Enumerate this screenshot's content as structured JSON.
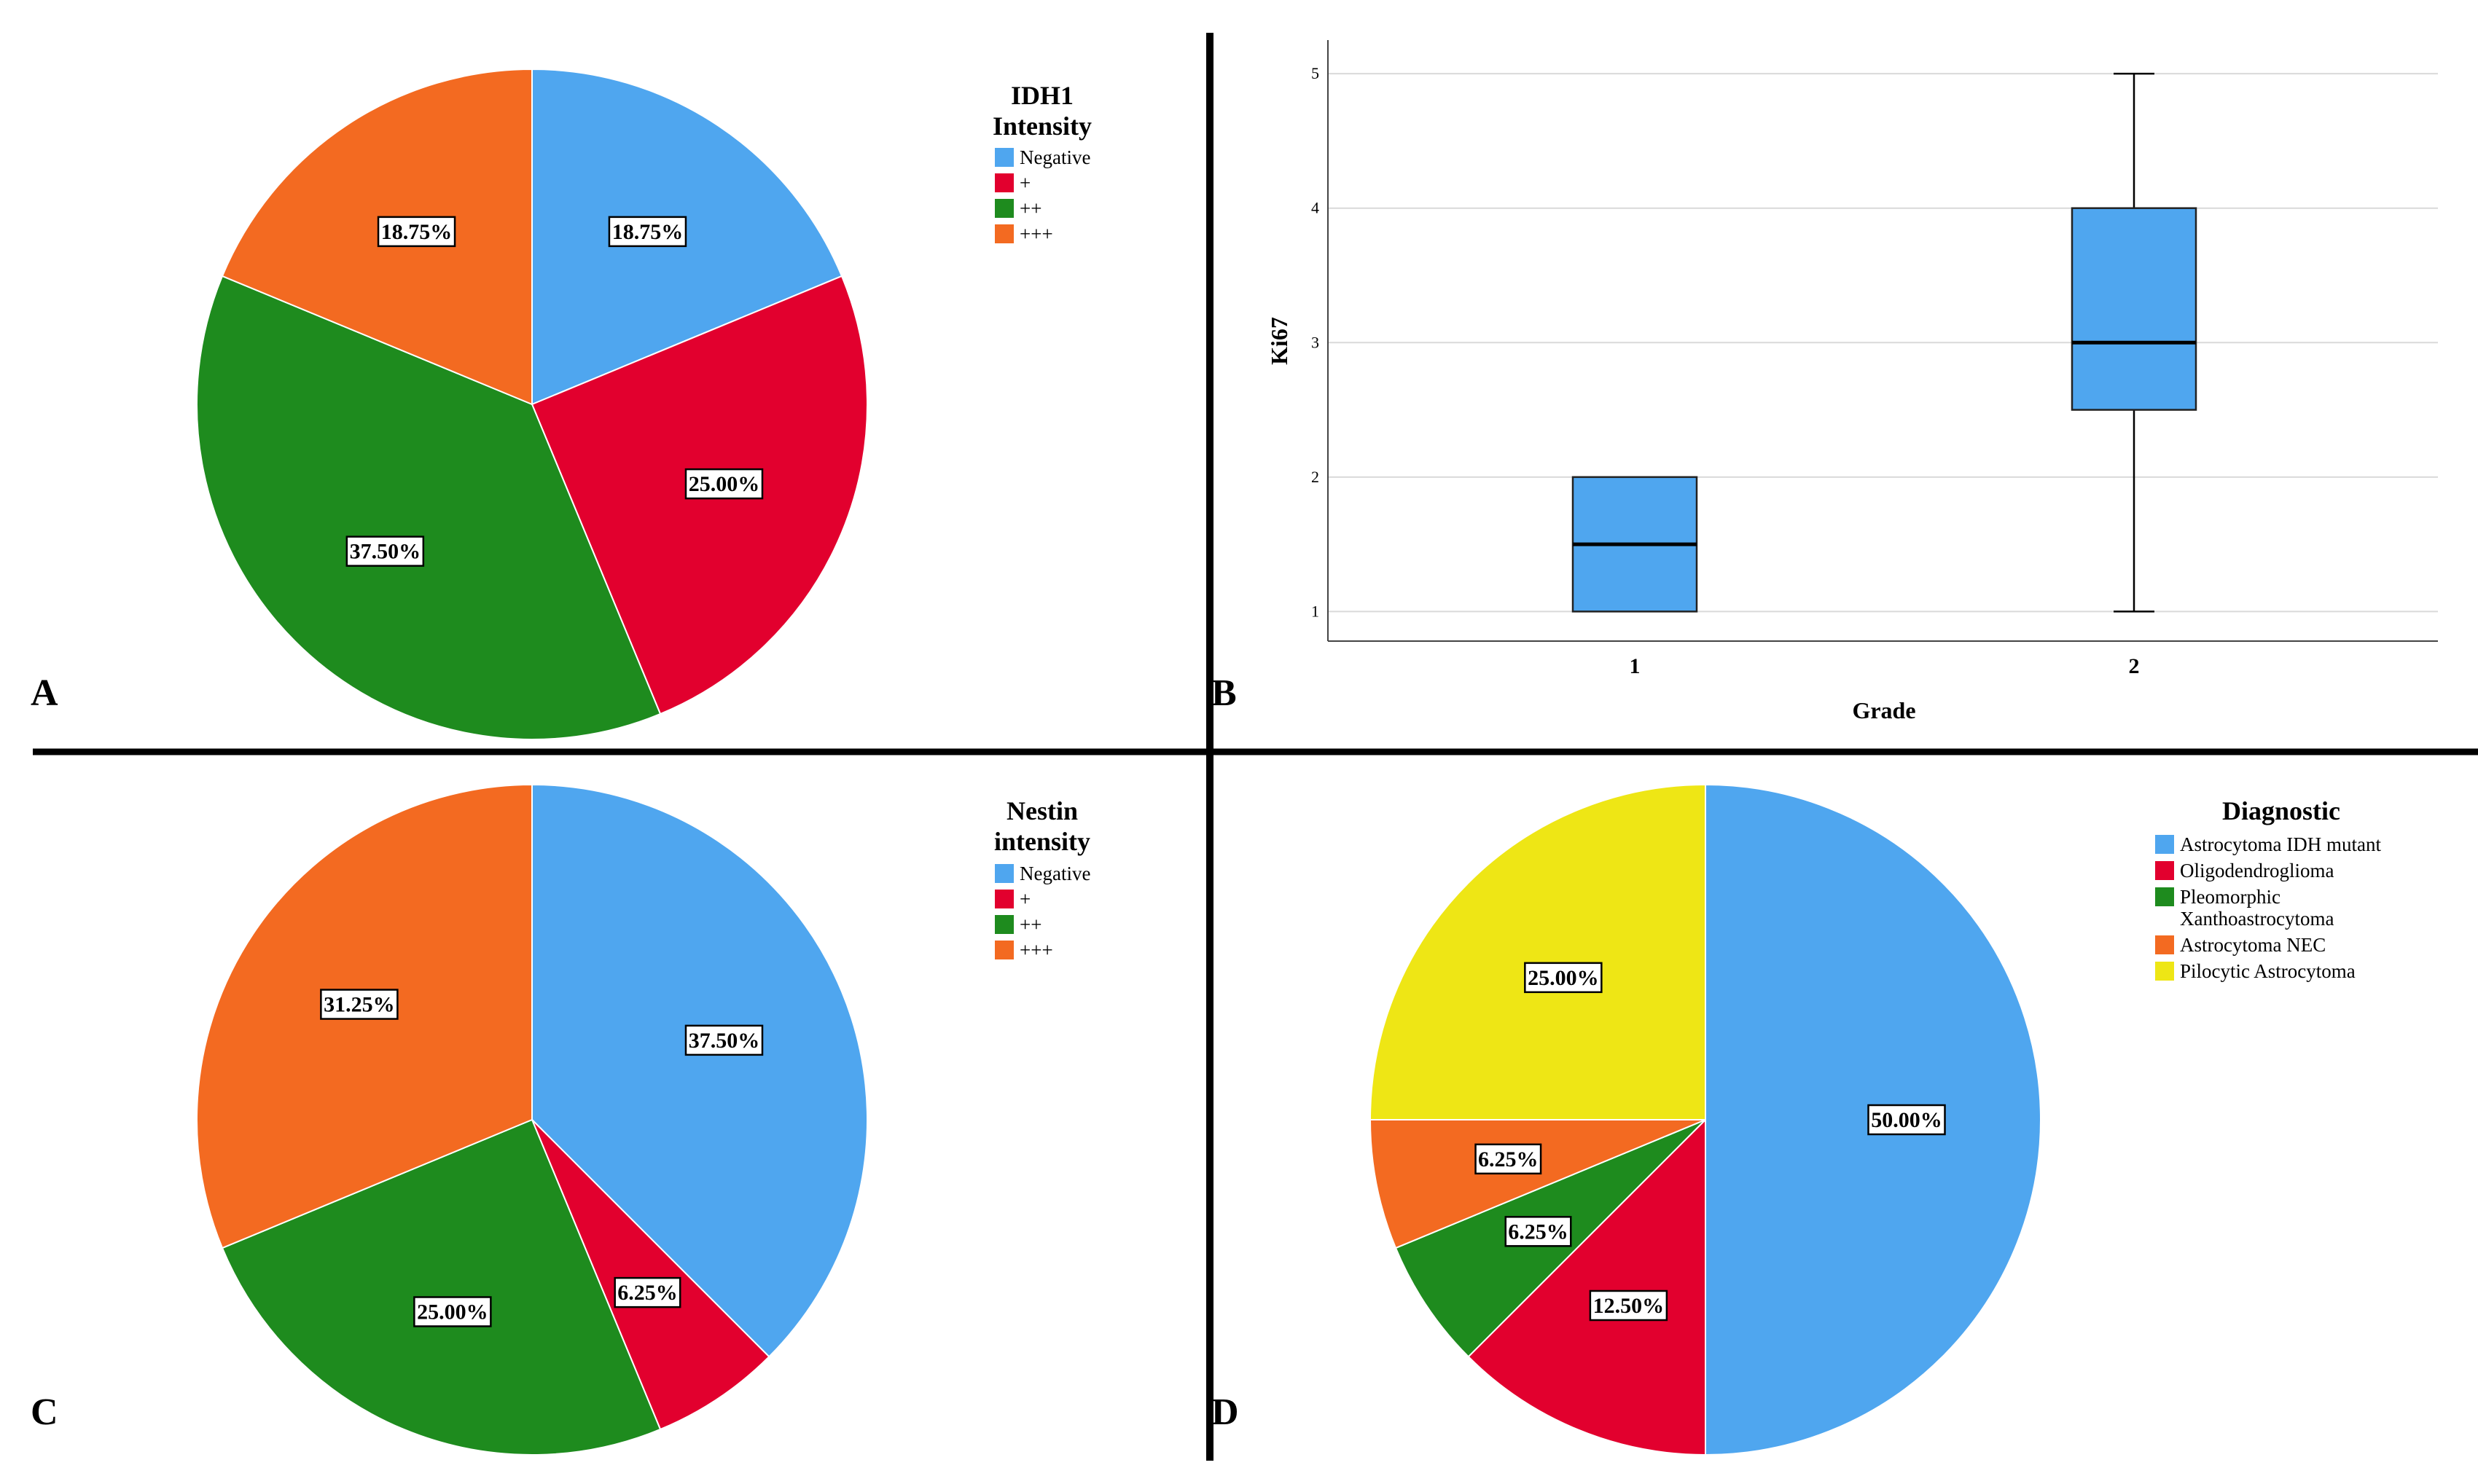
{
  "colors": {
    "blue": "#4FA6EF",
    "red": "#E2002E",
    "green": "#1E8B1E",
    "orange": "#F36A21",
    "yellow": "#EEE615",
    "grid": "#d9d9d9",
    "divider": "#000000"
  },
  "panels": {
    "A": "A",
    "B": "B",
    "C": "C",
    "D": "D"
  },
  "chart_data": [
    {
      "id": "A",
      "type": "pie",
      "legend_title_lines": [
        "IDH1",
        "Intensity"
      ],
      "labels": [
        "Negative",
        "+",
        "++",
        "+++"
      ],
      "values": [
        18.75,
        25.0,
        37.5,
        18.75
      ],
      "value_labels": [
        "18.75%",
        "25.00%",
        "37.50%",
        "18.75%"
      ],
      "colors": [
        "#4FA6EF",
        "#E2002E",
        "#1E8B1E",
        "#F36A21"
      ],
      "legend_position": "top-right"
    },
    {
      "id": "B",
      "type": "boxplot",
      "xlabel": "Grade",
      "ylabel": "Ki67",
      "categories": [
        "1",
        "2"
      ],
      "boxes": [
        {
          "category": "1",
          "min": 1,
          "q1": 1,
          "median": 1.5,
          "q3": 2,
          "max": 2
        },
        {
          "category": "2",
          "min": 1,
          "q1": 2.5,
          "median": 3,
          "q3": 4,
          "max": 5
        }
      ],
      "yticks": [
        1,
        2,
        3,
        4,
        5
      ],
      "ylim": [
        0.78,
        5.25
      ],
      "grid": true,
      "box_color": "#4FA6EF"
    },
    {
      "id": "C",
      "type": "pie",
      "legend_title_lines": [
        "Nestin",
        "intensity"
      ],
      "labels": [
        "Negative",
        "+",
        "++",
        "+++"
      ],
      "values": [
        37.5,
        6.25,
        25.0,
        31.25
      ],
      "value_labels": [
        "37.50%",
        "6.25%",
        "25.00%",
        "31.25%"
      ],
      "colors": [
        "#4FA6EF",
        "#E2002E",
        "#1E8B1E",
        "#F36A21"
      ],
      "legend_position": "top-right"
    },
    {
      "id": "D",
      "type": "pie",
      "legend_title_lines": [
        "Diagnostic"
      ],
      "labels": [
        "Astrocytoma IDH mutant",
        "Oligodendroglioma",
        "Pleomorphic Xanthoastrocytoma",
        "Astrocytoma NEC",
        "Pilocytic Astrocytoma"
      ],
      "legend_label_lines": [
        [
          "Astrocytoma IDH mutant"
        ],
        [
          "Oligodendroglioma"
        ],
        [
          "Pleomorphic",
          "Xanthoastrocytoma"
        ],
        [
          "Astrocytoma NEC"
        ],
        [
          "Pilocytic Astrocytoma"
        ]
      ],
      "values": [
        50.0,
        12.5,
        6.25,
        6.25,
        25.0
      ],
      "value_labels": [
        "50.00%",
        "12.50%",
        "6.25%",
        "6.25%",
        "25.00%"
      ],
      "colors": [
        "#4FA6EF",
        "#E2002E",
        "#1E8B1E",
        "#F36A21",
        "#EEE615"
      ],
      "legend_position": "top-right"
    }
  ]
}
